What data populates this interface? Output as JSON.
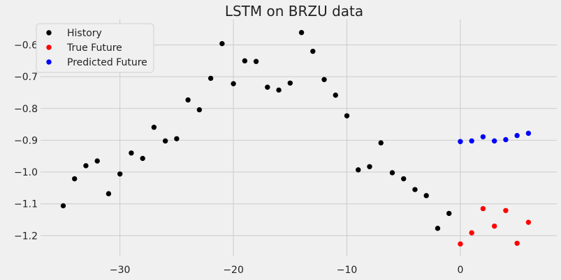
{
  "chart_data": {
    "type": "scatter",
    "title": "LSTM on BRZU data",
    "xlabel": "",
    "ylabel": "",
    "xlim": [
      -37,
      8.5
    ],
    "ylim": [
      -1.265,
      -0.52
    ],
    "xticks": [
      -30,
      -20,
      -10,
      0
    ],
    "yticks": [
      -1.2,
      -1.1,
      -1.0,
      -0.9,
      -0.8,
      -0.7,
      -0.6
    ],
    "xtick_labels": [
      "−30",
      "−20",
      "−10",
      "0"
    ],
    "ytick_labels": [
      "−1.2",
      "−1.1",
      "−1.0",
      "−0.9",
      "−0.8",
      "−0.7",
      "−0.6"
    ],
    "grid": true,
    "legend_position": "top-left",
    "series": [
      {
        "name": "History",
        "color": "#000000",
        "x": [
          -35,
          -34,
          -33,
          -32,
          -31,
          -30,
          -29,
          -28,
          -27,
          -26,
          -25,
          -24,
          -23,
          -22,
          -21,
          -20,
          -19,
          -18,
          -17,
          -16,
          -15,
          -14,
          -13,
          -12,
          -11,
          -10,
          -9,
          -8,
          -7,
          -6,
          -5,
          -4,
          -3,
          -2,
          -1
        ],
        "y": [
          -1.106,
          -1.021,
          -0.98,
          -0.965,
          -1.068,
          -1.006,
          -0.94,
          -0.957,
          -0.859,
          -0.902,
          -0.895,
          -0.773,
          -0.804,
          -0.705,
          -0.596,
          -0.722,
          -0.65,
          -0.652,
          -0.733,
          -0.742,
          -0.72,
          -0.561,
          -0.62,
          -0.709,
          -0.758,
          -0.823,
          -0.993,
          -0.983,
          -0.908,
          -1.002,
          -1.021,
          -1.055,
          -1.074,
          -1.177,
          -1.13
        ]
      },
      {
        "name": "True Future",
        "color": "#ff0000",
        "x": [
          0,
          1,
          2,
          3,
          4,
          5,
          6
        ],
        "y": [
          -1.226,
          -1.191,
          -1.115,
          -1.17,
          -1.121,
          -1.224,
          -1.158
        ]
      },
      {
        "name": "Predicted Future",
        "color": "#0000ff",
        "x": [
          0,
          1,
          2,
          3,
          4,
          5,
          6
        ],
        "y": [
          -0.904,
          -0.902,
          -0.889,
          -0.902,
          -0.898,
          -0.885,
          -0.878
        ]
      }
    ]
  }
}
